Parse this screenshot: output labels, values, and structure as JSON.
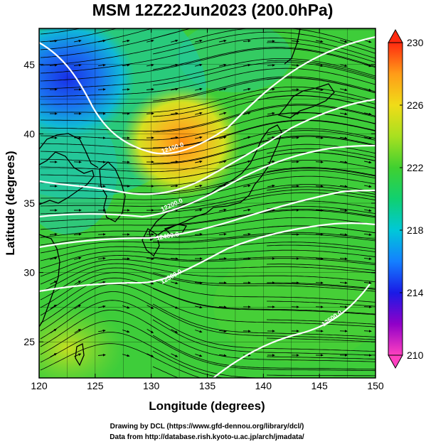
{
  "title": "MSM 12Z22Jun2023 (200.0hPa)",
  "xlabel": "Longitude (degrees)",
  "ylabel": "Latitude  (degrees)",
  "credits": [
    "Drawing by DCL (https://www.gfd-dennou.org/library/dcl/)",
    "Data from http://database.rish.kyoto-u.ac.jp/arch/jmadata/"
  ],
  "chart_data": {
    "type": "heatmap",
    "variable": "temperature field with wind streamlines and height contours",
    "xlim": [
      120,
      150
    ],
    "ylim": [
      22.4,
      47.6
    ],
    "x_ticks": [
      120,
      125,
      130,
      135,
      140,
      145,
      150
    ],
    "y_ticks": [
      25,
      30,
      35,
      40,
      45
    ],
    "colorbar": {
      "min": 210,
      "max": 230,
      "ticks": [
        210,
        214,
        218,
        222,
        226,
        230
      ],
      "colors": [
        "#ff3fbf",
        "#9a00c0",
        "#2020ff",
        "#00b0e0",
        "#00e090",
        "#30c030",
        "#9ad020",
        "#f0e020",
        "#ffa020",
        "#ff3010"
      ]
    },
    "contour_labels": [
      "12100.0",
      "12200.0",
      "12400.0",
      "12300.0",
      "12500.0"
    ],
    "features": {
      "warm_maximum": {
        "lon": 133,
        "lat": 38.7,
        "value": 228
      },
      "cold_region": {
        "lon": 122,
        "lat": 44,
        "value": 214
      }
    }
  }
}
